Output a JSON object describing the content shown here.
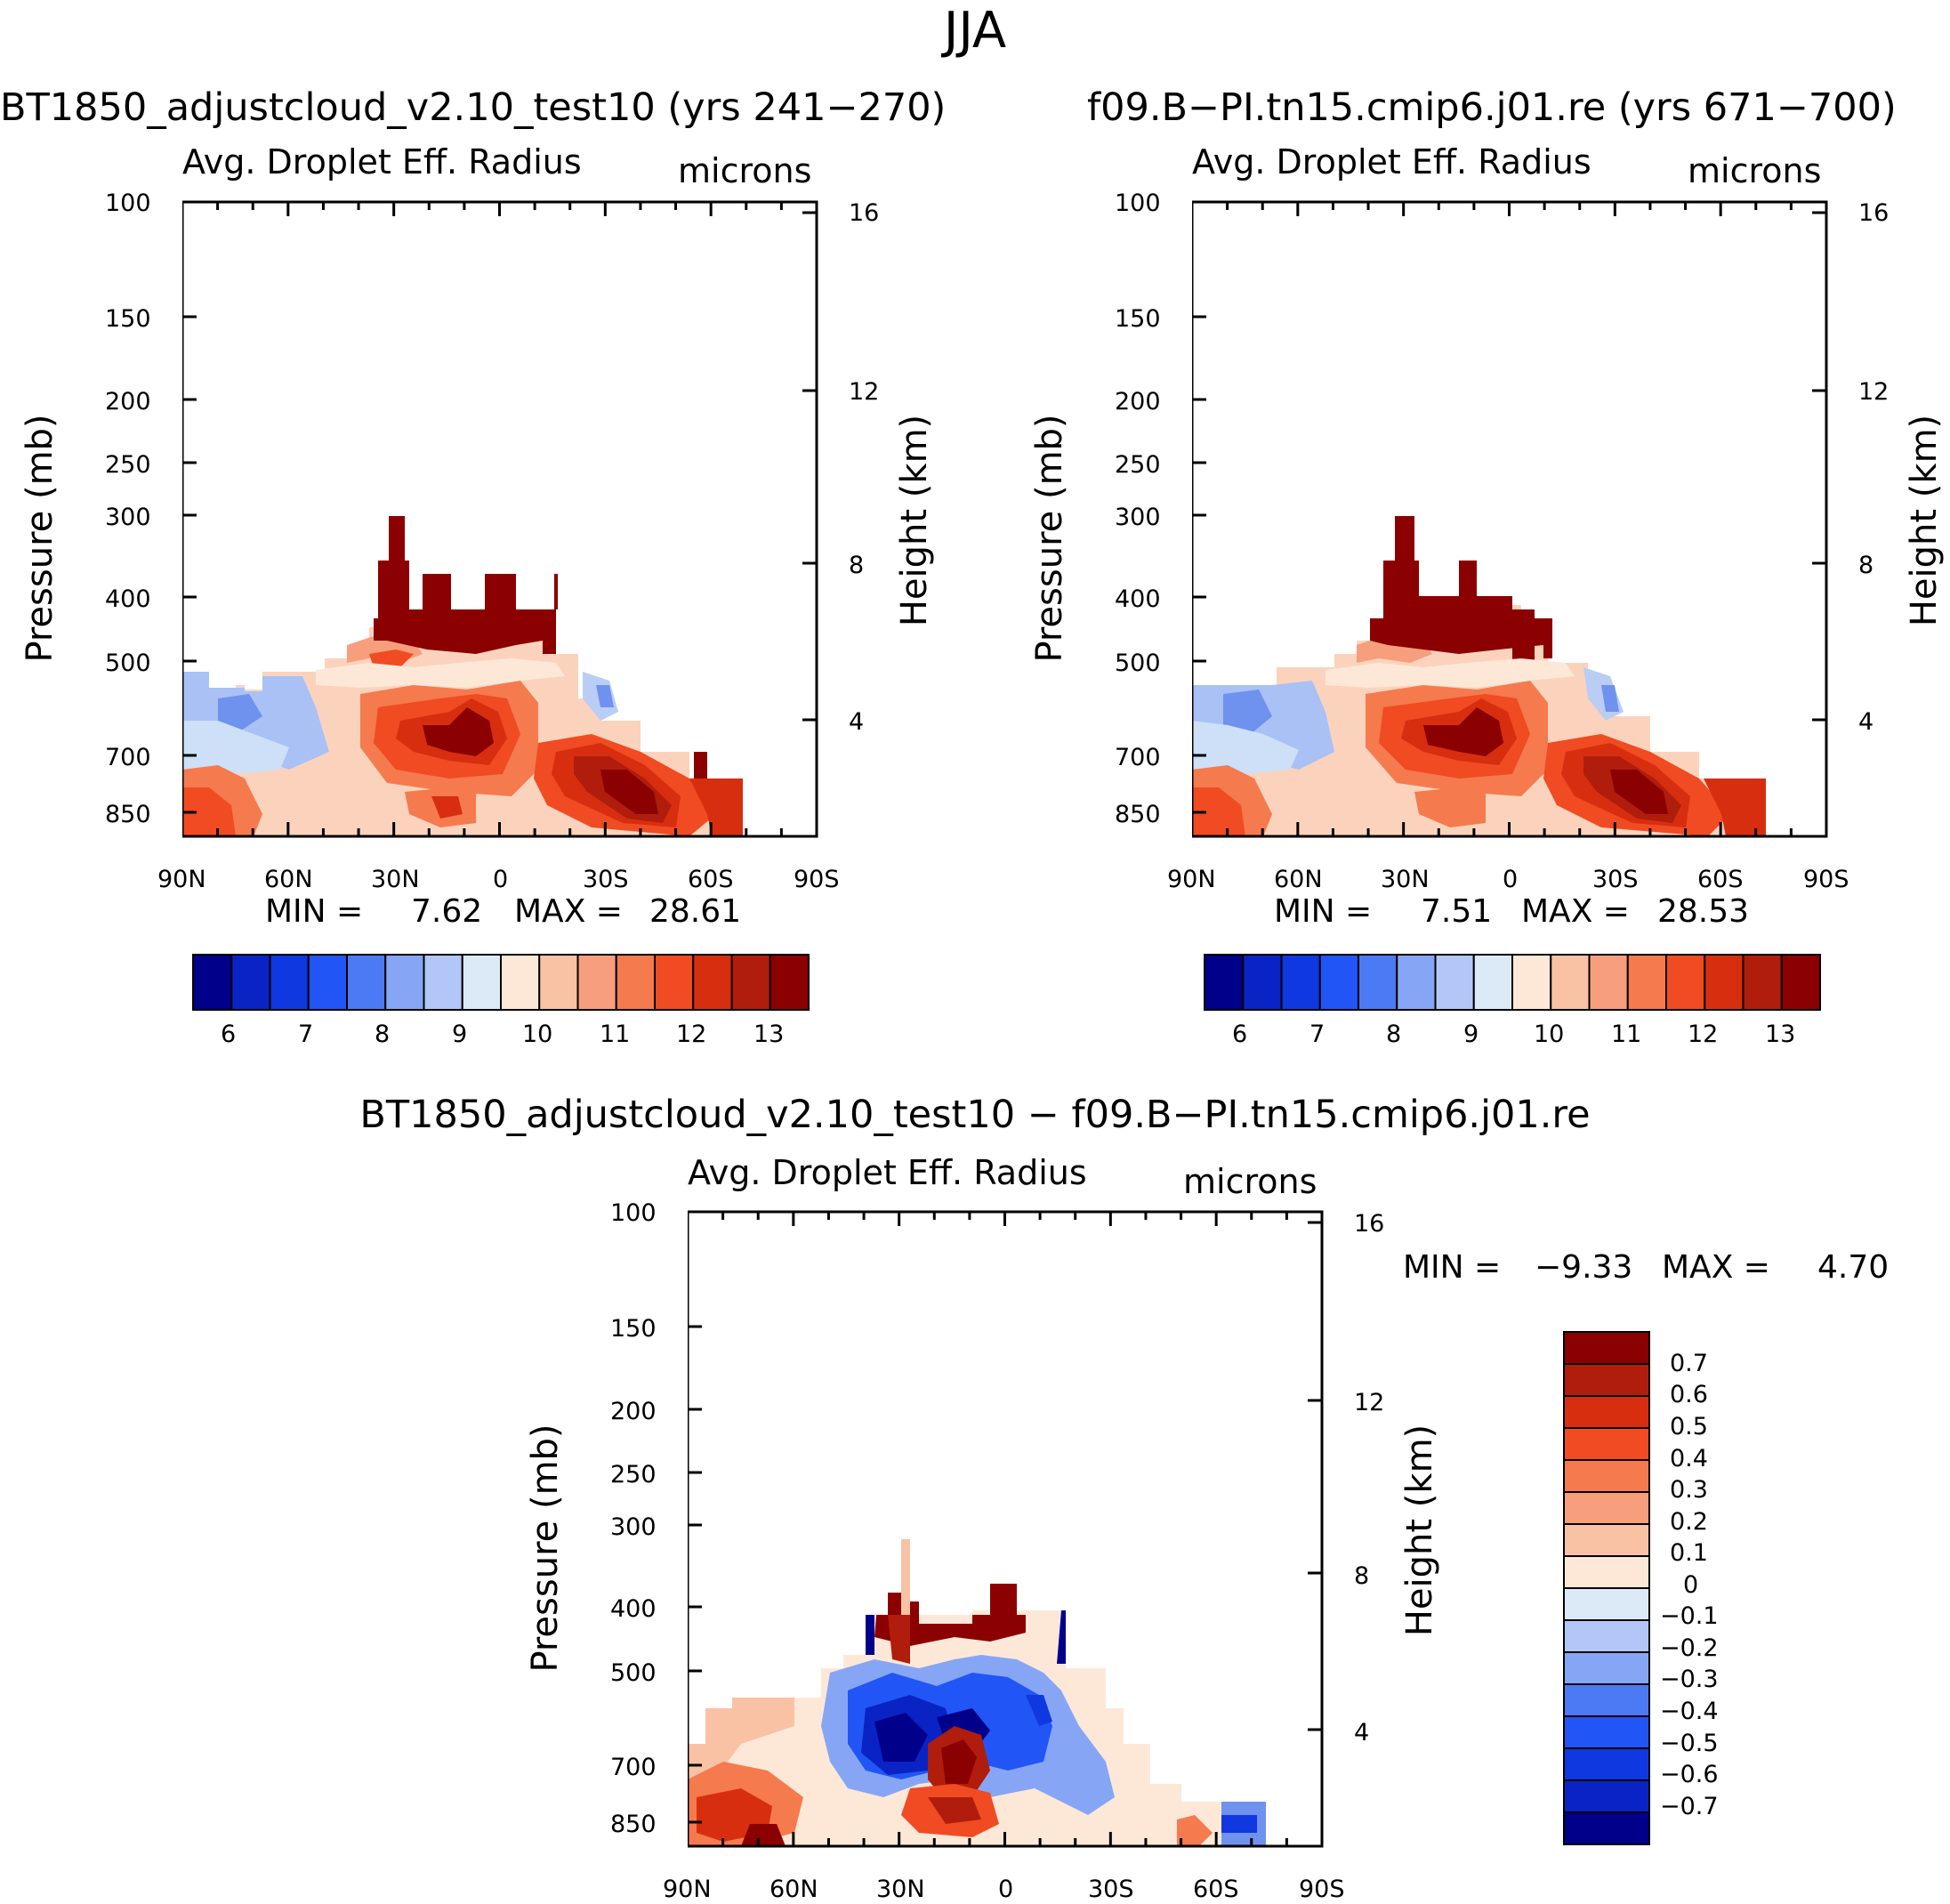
{
  "main_title": "JJA",
  "chart_data": [
    {
      "type": "heatmap",
      "id": "left",
      "title": "BT1850_adjustcloud_v2.10_test10 (yrs 241−270)",
      "field_label": "Avg. Droplet Eff. Radius",
      "units": "microns",
      "ylabel": "Pressure (mb)",
      "ylabel_right": "Height (km)",
      "x_ticks": [
        "90N",
        "60N",
        "30N",
        "0",
        "30S",
        "60S",
        "90S"
      ],
      "y_ticks": [
        "100",
        "150",
        "200",
        "250",
        "300",
        "400",
        "500",
        "700",
        "850"
      ],
      "y_ticks_right": [
        "16",
        "12",
        "8",
        "4"
      ],
      "min_label": "MIN =",
      "min": "7.62",
      "max_label": "MAX =",
      "max": "28.61",
      "colorbar_labels": [
        "6",
        "7",
        "8",
        "9",
        "10",
        "11",
        "12",
        "13"
      ]
    },
    {
      "type": "heatmap",
      "id": "right",
      "title": "f09.B−PI.tn15.cmip6.j01.re (yrs 671−700)",
      "field_label": "Avg. Droplet Eff. Radius",
      "units": "microns",
      "ylabel": "Pressure (mb)",
      "ylabel_right": "Height (km)",
      "x_ticks": [
        "90N",
        "60N",
        "30N",
        "0",
        "30S",
        "60S",
        "90S"
      ],
      "y_ticks": [
        "100",
        "150",
        "200",
        "250",
        "300",
        "400",
        "500",
        "700",
        "850"
      ],
      "y_ticks_right": [
        "16",
        "12",
        "8",
        "4"
      ],
      "min_label": "MIN =",
      "min": "7.51",
      "max_label": "MAX =",
      "max": "28.53",
      "colorbar_labels": [
        "6",
        "7",
        "8",
        "9",
        "10",
        "11",
        "12",
        "13"
      ]
    },
    {
      "type": "heatmap",
      "id": "diff",
      "title": "BT1850_adjustcloud_v2.10_test10 − f09.B−PI.tn15.cmip6.j01.re",
      "field_label": "Avg. Droplet Eff. Radius",
      "units": "microns",
      "ylabel": "Pressure (mb)",
      "ylabel_right": "Height (km)",
      "x_ticks": [
        "90N",
        "60N",
        "30N",
        "0",
        "30S",
        "60S",
        "90S"
      ],
      "y_ticks": [
        "100",
        "150",
        "200",
        "250",
        "300",
        "400",
        "500",
        "700",
        "850"
      ],
      "y_ticks_right": [
        "16",
        "12",
        "8",
        "4"
      ],
      "min_label": "MIN =",
      "min": "−9.33",
      "max_label": "MAX =",
      "max": "4.70",
      "colorbar_labels": [
        "0.7",
        "0.6",
        "0.5",
        "0.4",
        "0.3",
        "0.2",
        "0.1",
        "0",
        "−0.1",
        "−0.2",
        "−0.3",
        "−0.4",
        "−0.5",
        "−0.6",
        "−0.7"
      ]
    }
  ],
  "colors": {
    "abs_scale": [
      "#00008b",
      "#0a23c4",
      "#1038e0",
      "#2255f5",
      "#4c7af5",
      "#86a6f5",
      "#b2c7f7",
      "#dceaf8",
      "#fde8d8",
      "#f9c2a5",
      "#f79e7c",
      "#f57a4e",
      "#f04b22",
      "#d82e10",
      "#b01d0c",
      "#8b0000"
    ],
    "diff_scale": [
      "#8b0000",
      "#b01d0c",
      "#d82e10",
      "#f04b22",
      "#f57a4e",
      "#f79e7c",
      "#f9c2a5",
      "#fde8d8",
      "#dceaf8",
      "#b2c7f7",
      "#86a6f5",
      "#4c7af5",
      "#2255f5",
      "#1038e0",
      "#0a23c4",
      "#00008b"
    ]
  }
}
